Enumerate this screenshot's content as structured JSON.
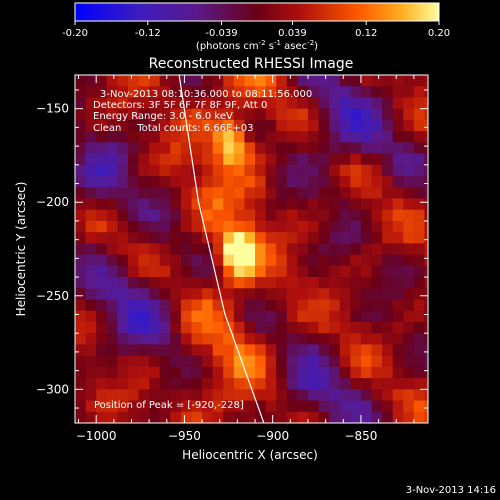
{
  "chart_data": {
    "type": "heatmap",
    "title": "Reconstructed RHESSI Image",
    "xlabel": "Heliocentric X (arcsec)",
    "ylabel": "Heliocentric Y (arcsec)",
    "xlim": [
      -1012,
      -812
    ],
    "ylim": [
      -318,
      -132
    ],
    "xticks": [
      -1000,
      -950,
      -900,
      -850
    ],
    "yticks": [
      -150,
      -200,
      -250,
      -300
    ],
    "colorbar": {
      "min": -0.2,
      "max": 0.2,
      "ticks": [
        "-0.20",
        "-0.12",
        "-0.039",
        "0.039",
        "0.12",
        "0.20"
      ],
      "unit_label": "(photons cm",
      "unit_sup1": "-2",
      "unit_mid": " s",
      "unit_sup2": "-1",
      "unit_mid2": " asec",
      "unit_sup3": "-2",
      "unit_close": ")"
    },
    "annotations": {
      "time_range": "3-Nov-2013 08:10:36.000 to 08:11:56.000",
      "detectors": "Detectors: 3F 5F 6F 7F 8F 9F, Att 0",
      "energy": "Energy Range: 3.0 - 6.0 keV",
      "method": "Clean     Total counts: 6.66E+03",
      "peak": "Position of Peak = [-920,-228]"
    },
    "peak_position": [
      -920,
      -228
    ],
    "sources": [
      {
        "x": -920,
        "y": -228,
        "peak": 0.2
      },
      {
        "x": -923,
        "y": -168,
        "peak": 0.14
      }
    ],
    "limb_curve": [
      [
        -953,
        -132
      ],
      [
        -942,
        -200
      ],
      [
        -927,
        -260
      ],
      [
        -905,
        -318
      ]
    ],
    "footer_date": "3-Nov-2013 14:16"
  }
}
